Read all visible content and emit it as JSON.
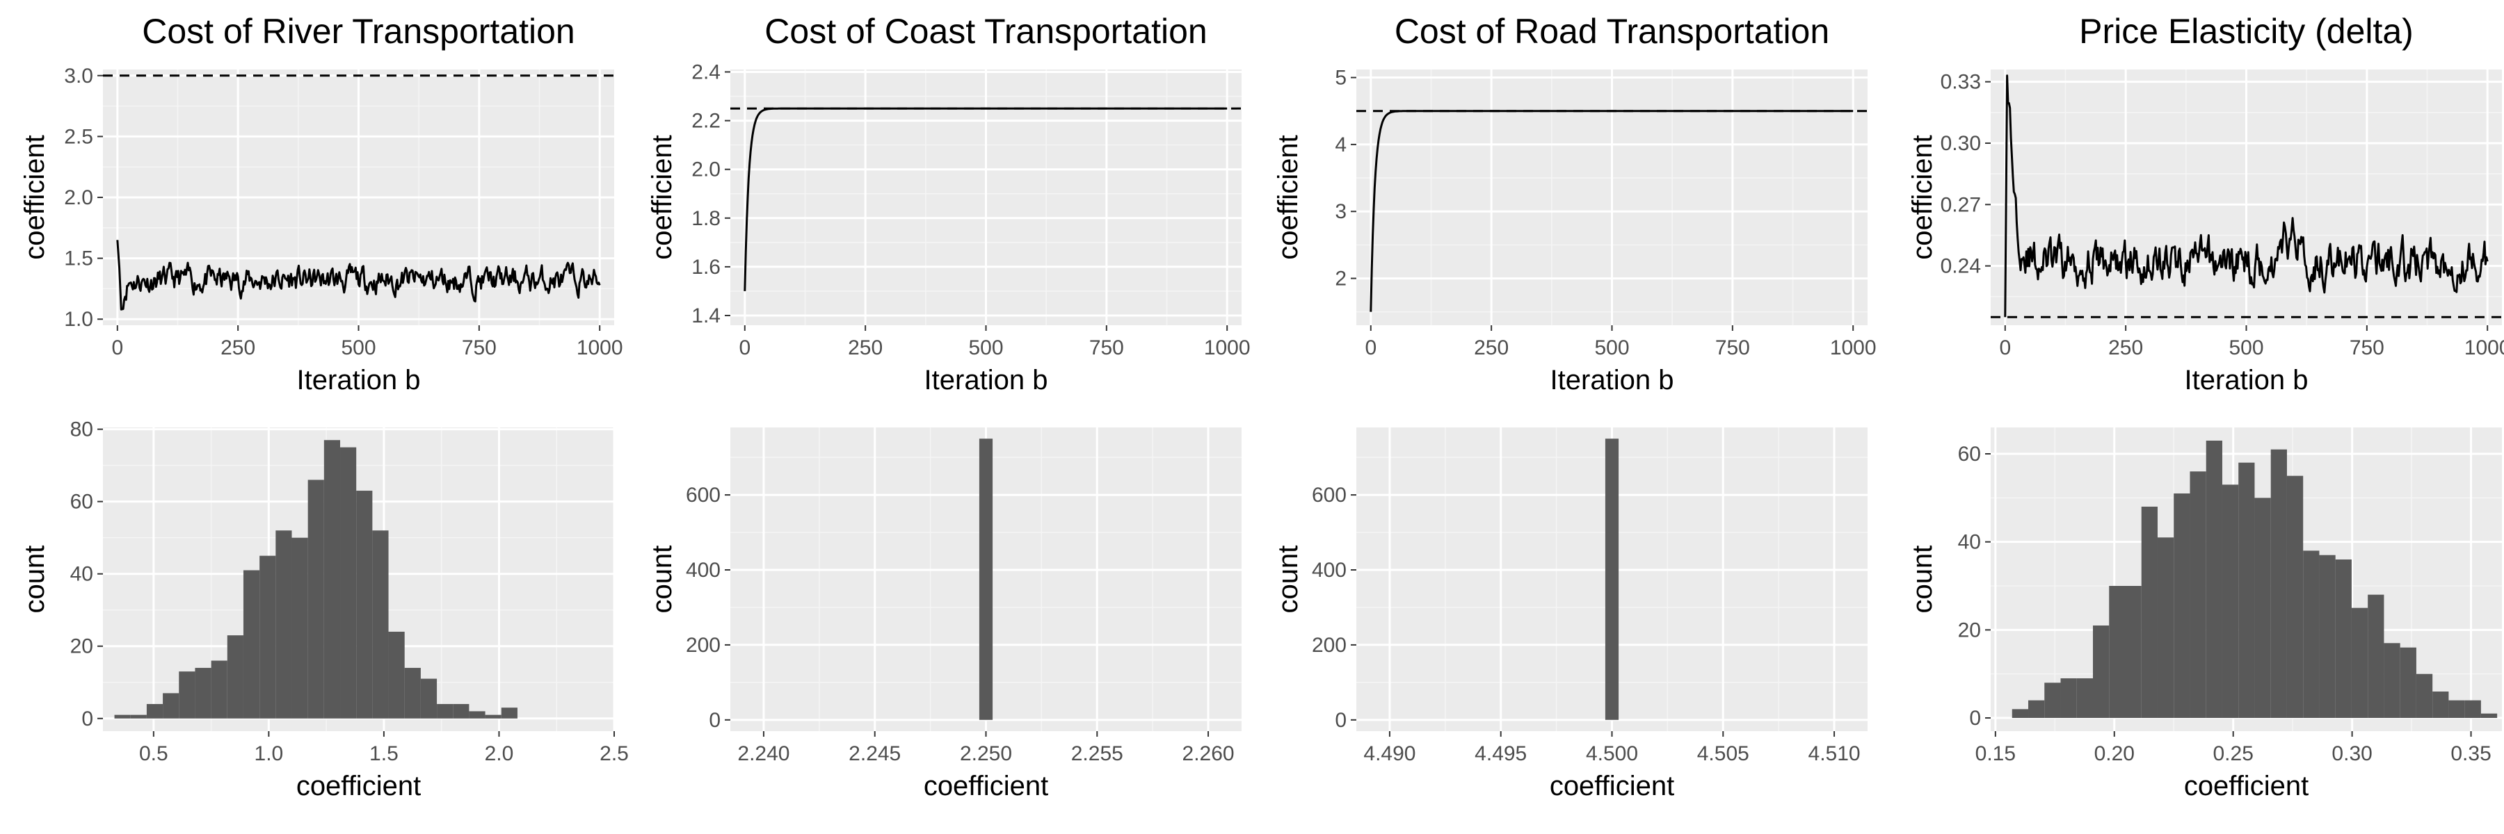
{
  "chart_data": [
    {
      "type": "line",
      "title": "Cost of River Transportation",
      "xlabel": "Iteration b",
      "ylabel": "coefficient",
      "xlim": [
        -30,
        1030
      ],
      "ylim": [
        0.95,
        3.05
      ],
      "xticks": [
        0,
        250,
        500,
        750,
        1000
      ],
      "xtick_labels": [
        "0",
        "250",
        "500",
        "750",
        "1000"
      ],
      "yticks": [
        1.0,
        1.5,
        2.0,
        2.5,
        3.0
      ],
      "ytick_labels": [
        "1.0",
        "1.5",
        "2.0",
        "2.5",
        "3.0"
      ],
      "reference_line": 3.0,
      "series": {
        "start": 1.65,
        "dip": 1.08,
        "mean": 1.32,
        "noise": 0.08,
        "seed": 11
      }
    },
    {
      "type": "line",
      "title": "Cost of Coast Transportation",
      "xlabel": "Iteration b",
      "ylabel": "coefficient",
      "xlim": [
        -30,
        1030
      ],
      "ylim": [
        1.36,
        2.41
      ],
      "xticks": [
        0,
        250,
        500,
        750,
        1000
      ],
      "xtick_labels": [
        "0",
        "250",
        "500",
        "750",
        "1000"
      ],
      "yticks": [
        1.4,
        1.6,
        1.8,
        2.0,
        2.2,
        2.4
      ],
      "ytick_labels": [
        "1.4",
        "1.6",
        "1.8",
        "2.0",
        "2.2",
        "2.4"
      ],
      "reference_line": 2.25,
      "series": {
        "start": 1.5,
        "target": 2.25,
        "rate": 0.12
      }
    },
    {
      "type": "line",
      "title": "Cost of Road Transportation",
      "xlabel": "Iteration b",
      "ylabel": "coefficient",
      "xlim": [
        -30,
        1030
      ],
      "ylim": [
        1.3,
        5.12
      ],
      "xticks": [
        0,
        250,
        500,
        750,
        1000
      ],
      "xtick_labels": [
        "0",
        "250",
        "500",
        "750",
        "1000"
      ],
      "yticks": [
        2,
        3,
        4,
        5
      ],
      "ytick_labels": [
        "2",
        "3",
        "4",
        "5"
      ],
      "reference_line": 4.5,
      "series": {
        "start": 1.5,
        "target": 4.5,
        "rate": 0.12
      }
    },
    {
      "type": "line",
      "title": "Price Elasticity (delta)",
      "xlabel": "Iteration b",
      "ylabel": "coefficient",
      "xlim": [
        -30,
        1030
      ],
      "ylim": [
        0.211,
        0.336
      ],
      "xticks": [
        0,
        250,
        500,
        750,
        1000
      ],
      "xtick_labels": [
        "0",
        "250",
        "500",
        "750",
        "1000"
      ],
      "yticks": [
        0.24,
        0.27,
        0.3,
        0.33
      ],
      "ytick_labels": [
        "0.24",
        "0.27",
        "0.30",
        "0.33"
      ],
      "reference_line": 0.215,
      "series": {
        "start": 0.215,
        "peak": 0.333,
        "mean": 0.242,
        "noise": 0.008,
        "seed": 29
      }
    },
    {
      "type": "bar",
      "title": "",
      "xlabel": "coefficient",
      "ylabel": "count",
      "xlim": [
        0.28,
        2.5
      ],
      "ylim": [
        -3.5,
        80.5
      ],
      "xticks": [
        0.5,
        1.0,
        1.5,
        2.0,
        2.5
      ],
      "xtick_labels": [
        "0.5",
        "1.0",
        "1.5",
        "2.0",
        "2.5"
      ],
      "yticks": [
        0,
        20,
        40,
        60,
        80
      ],
      "ytick_labels": [
        "0",
        "20",
        "40",
        "60",
        "80"
      ],
      "bin_start": 0.33,
      "bin_width": 0.07,
      "values": [
        1,
        1,
        4,
        7,
        13,
        14,
        16,
        23,
        41,
        45,
        52,
        50,
        66,
        77,
        75,
        63,
        52,
        24,
        14,
        11,
        4,
        4,
        2,
        1,
        3
      ]
    },
    {
      "type": "bar",
      "title": "",
      "xlabel": "coefficient",
      "ylabel": "count",
      "xlim": [
        2.2385,
        2.2615
      ],
      "ylim": [
        -30,
        780
      ],
      "xticks": [
        2.24,
        2.245,
        2.25,
        2.255,
        2.26
      ],
      "xtick_labels": [
        "2.240",
        "2.245",
        "2.250",
        "2.255",
        "2.260"
      ],
      "yticks": [
        0,
        200,
        400,
        600
      ],
      "ytick_labels": [
        "0",
        "200",
        "400",
        "600"
      ],
      "bin_start": 2.2497,
      "bin_width": 0.0006,
      "values": [
        750
      ]
    },
    {
      "type": "bar",
      "title": "",
      "xlabel": "coefficient",
      "ylabel": "count",
      "xlim": [
        4.4885,
        4.5115
      ],
      "ylim": [
        -30,
        780
      ],
      "xticks": [
        4.49,
        4.495,
        4.5,
        4.505,
        4.51
      ],
      "xtick_labels": [
        "4.490",
        "4.495",
        "4.500",
        "4.505",
        "4.510"
      ],
      "yticks": [
        0,
        200,
        400,
        600
      ],
      "ytick_labels": [
        "0",
        "200",
        "400",
        "600"
      ],
      "bin_start": 4.4997,
      "bin_width": 0.0006,
      "values": [
        750
      ]
    },
    {
      "type": "bar",
      "title": "",
      "xlabel": "coefficient",
      "ylabel": "count",
      "xlim": [
        0.148,
        0.363
      ],
      "ylim": [
        -3,
        66
      ],
      "xticks": [
        0.15,
        0.2,
        0.25,
        0.3,
        0.35
      ],
      "xtick_labels": [
        "0.15",
        "0.20",
        "0.25",
        "0.30",
        "0.35"
      ],
      "yticks": [
        0,
        20,
        40,
        60
      ],
      "ytick_labels": [
        "0",
        "20",
        "40",
        "60"
      ],
      "bin_start": 0.157,
      "bin_width": 0.0068,
      "values": [
        2,
        4,
        8,
        9,
        9,
        21,
        30,
        30,
        48,
        41,
        51,
        56,
        63,
        53,
        58,
        50,
        61,
        55,
        38,
        37,
        36,
        25,
        28,
        17,
        16,
        10,
        6,
        4,
        4,
        1,
        0,
        2,
        2
      ]
    }
  ]
}
